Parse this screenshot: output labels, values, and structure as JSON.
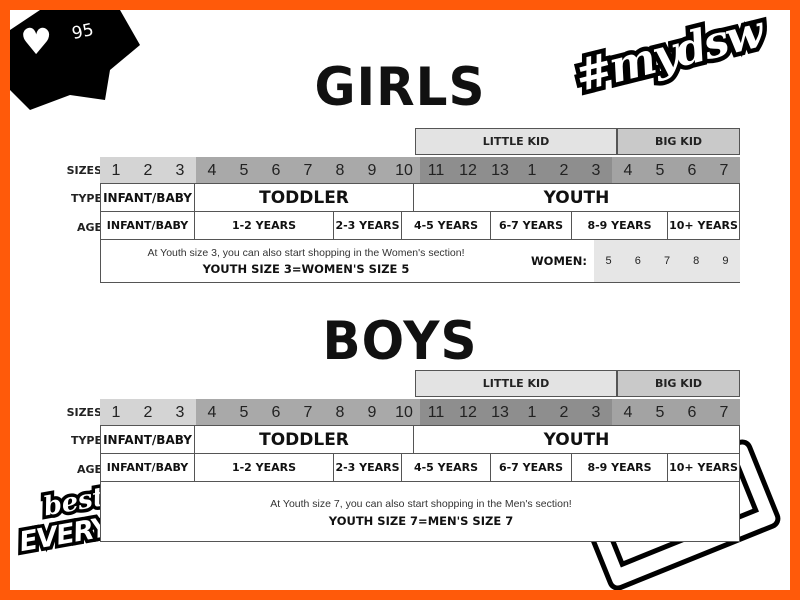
{
  "badge": {
    "likes": "95",
    "icon": "heart-icon"
  },
  "stickers": {
    "hashtag": "#mydsw",
    "best_of": "best of",
    "everything": "EVERYTHING"
  },
  "colors": {
    "border": "#ff5a0a",
    "size_1_3": "#d4d4d4",
    "size_4_10": "#a9a9a9",
    "size_youth_little": "#8e8e8e",
    "size_youth_big": "#a3a3a3",
    "little_kid": "#e3e3e3",
    "big_kid": "#c9c9c9",
    "women_cells": "#e6e6e6"
  },
  "girls": {
    "title": "GIRLS",
    "little_kid": "LITTLE KID",
    "big_kid": "BIG KID",
    "labels": {
      "sizes": "SIZES",
      "type": "TYPE",
      "age": "AGE"
    },
    "sizes": [
      "1",
      "2",
      "3",
      "4",
      "5",
      "6",
      "7",
      "8",
      "9",
      "10",
      "11",
      "12",
      "13",
      "1",
      "2",
      "3",
      "4",
      "5",
      "6",
      "7"
    ],
    "types": [
      "INFANT/BABY",
      "TODDLER",
      "YOUTH"
    ],
    "ages": [
      "INFANT/BABY",
      "1-2 YEARS",
      "2-3 YEARS",
      "4-5 YEARS",
      "6-7 YEARS",
      "8-9 YEARS",
      "10+ YEARS"
    ],
    "note": "At Youth size 3, you can also start shopping in the Women's section!",
    "conversion": "YOUTH SIZE 3=WOMEN'S SIZE 5",
    "women_label": "WOMEN:",
    "women_sizes": [
      "5",
      "6",
      "7",
      "8",
      "9"
    ]
  },
  "boys": {
    "title": "BOYS",
    "little_kid": "LITTLE KID",
    "big_kid": "BIG KID",
    "labels": {
      "sizes": "SIZES",
      "type": "TYPE",
      "age": "AGE"
    },
    "sizes": [
      "1",
      "2",
      "3",
      "4",
      "5",
      "6",
      "7",
      "8",
      "9",
      "10",
      "11",
      "12",
      "13",
      "1",
      "2",
      "3",
      "4",
      "5",
      "6",
      "7"
    ],
    "types": [
      "INFANT/BABY",
      "TODDLER",
      "YOUTH"
    ],
    "ages": [
      "INFANT/BABY",
      "1-2 YEARS",
      "2-3 YEARS",
      "4-5 YEARS",
      "6-7 YEARS",
      "8-9 YEARS",
      "10+ YEARS"
    ],
    "note": "At Youth size 7, you can also start shopping in the Men's section!",
    "conversion": "YOUTH SIZE 7=MEN'S SIZE 7"
  }
}
